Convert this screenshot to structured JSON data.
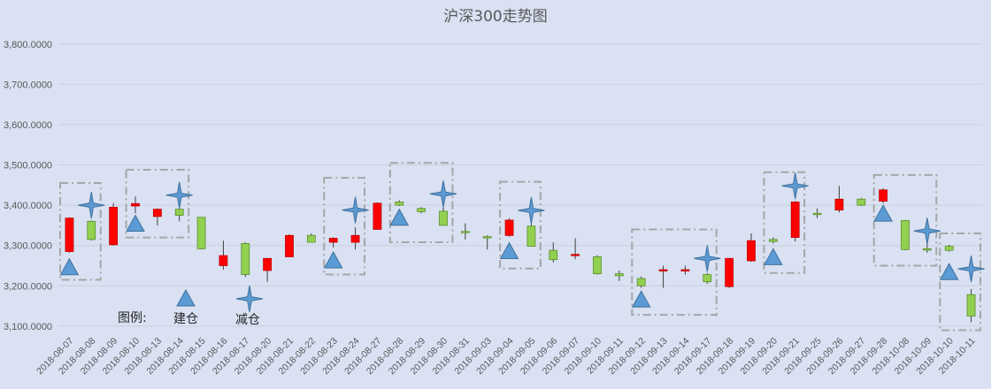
{
  "chart_data": {
    "type": "candlestick",
    "title": "沪深300走势图",
    "y_ticks": [
      "3,100.0000",
      "3,200.0000",
      "3,300.0000",
      "3,400.0000",
      "3,500.0000",
      "3,600.0000",
      "3,700.0000",
      "3,800.0000"
    ],
    "y_tick_values": [
      3100,
      3200,
      3300,
      3400,
      3500,
      3600,
      3700,
      3800
    ],
    "ylim": [
      3080,
      3885
    ],
    "grid": true,
    "colors": {
      "up": "#ff0000",
      "down": "#92d050",
      "marker": "#5b9bd5",
      "marker_edge": "#41719c",
      "box": "#a6a6a6",
      "wick": "#404040"
    },
    "categories": [
      "2018-08-07",
      "2018-08-08",
      "2018-08-09",
      "2018-08-10",
      "2018-08-13",
      "2018-08-14",
      "2018-08-15",
      "2018-08-16",
      "2018-08-17",
      "2018-08-20",
      "2018-08-21",
      "2018-08-22",
      "2018-08-23",
      "2018-08-24",
      "2018-08-27",
      "2018-08-28",
      "2018-08-29",
      "2018-08-30",
      "2018-08-31",
      "2018-09-03",
      "2018-09-04",
      "2018-09-05",
      "2018-09-06",
      "2018-09-07",
      "2018-09-10",
      "2018-09-11",
      "2018-09-12",
      "2018-09-13",
      "2018-09-14",
      "2018-09-17",
      "2018-09-18",
      "2018-09-19",
      "2018-09-20",
      "2018-09-21",
      "2018-09-25",
      "2018-09-26",
      "2018-09-27",
      "2018-09-28",
      "2018-10-08",
      "2018-10-09",
      "2018-10-10",
      "2018-10-11"
    ],
    "ohlc": [
      {
        "o": 3285,
        "h": 3370,
        "l": 3282,
        "c": 3368
      },
      {
        "o": 3360,
        "h": 3362,
        "l": 3312,
        "c": 3315
      },
      {
        "o": 3302,
        "h": 3405,
        "l": 3300,
        "c": 3395
      },
      {
        "o": 3398,
        "h": 3422,
        "l": 3380,
        "c": 3404
      },
      {
        "o": 3372,
        "h": 3392,
        "l": 3350,
        "c": 3390
      },
      {
        "o": 3390,
        "h": 3400,
        "l": 3360,
        "c": 3375
      },
      {
        "o": 3370,
        "h": 3370,
        "l": 3290,
        "c": 3292
      },
      {
        "o": 3250,
        "h": 3312,
        "l": 3240,
        "c": 3275
      },
      {
        "o": 3305,
        "h": 3308,
        "l": 3222,
        "c": 3228
      },
      {
        "o": 3238,
        "h": 3265,
        "l": 3210,
        "c": 3268
      },
      {
        "o": 3272,
        "h": 3328,
        "l": 3272,
        "c": 3325
      },
      {
        "o": 3325,
        "h": 3330,
        "l": 3308,
        "c": 3308
      },
      {
        "o": 3308,
        "h": 3320,
        "l": 3295,
        "c": 3318
      },
      {
        "o": 3308,
        "h": 3345,
        "l": 3290,
        "c": 3325
      },
      {
        "o": 3340,
        "h": 3407,
        "l": 3340,
        "c": 3405
      },
      {
        "o": 3408,
        "h": 3412,
        "l": 3398,
        "c": 3400
      },
      {
        "o": 3392,
        "h": 3395,
        "l": 3380,
        "c": 3384
      },
      {
        "o": 3385,
        "h": 3410,
        "l": 3350,
        "c": 3350
      },
      {
        "o": 3335,
        "h": 3355,
        "l": 3315,
        "c": 3332
      },
      {
        "o": 3322,
        "h": 3325,
        "l": 3290,
        "c": 3320
      },
      {
        "o": 3325,
        "h": 3368,
        "l": 3322,
        "c": 3363
      },
      {
        "o": 3348,
        "h": 3360,
        "l": 3298,
        "c": 3298
      },
      {
        "o": 3288,
        "h": 3308,
        "l": 3258,
        "c": 3265
      },
      {
        "o": 3275,
        "h": 3318,
        "l": 3266,
        "c": 3278
      },
      {
        "o": 3272,
        "h": 3276,
        "l": 3228,
        "c": 3230
      },
      {
        "o": 3230,
        "h": 3238,
        "l": 3212,
        "c": 3225
      },
      {
        "o": 3218,
        "h": 3223,
        "l": 3195,
        "c": 3200
      },
      {
        "o": 3238,
        "h": 3250,
        "l": 3195,
        "c": 3240
      },
      {
        "o": 3240,
        "h": 3250,
        "l": 3228,
        "c": 3240
      },
      {
        "o": 3228,
        "h": 3232,
        "l": 3205,
        "c": 3210
      },
      {
        "o": 3198,
        "h": 3268,
        "l": 3195,
        "c": 3268
      },
      {
        "o": 3262,
        "h": 3330,
        "l": 3260,
        "c": 3312
      },
      {
        "o": 3315,
        "h": 3320,
        "l": 3305,
        "c": 3310
      },
      {
        "o": 3320,
        "h": 3410,
        "l": 3310,
        "c": 3408
      },
      {
        "o": 3380,
        "h": 3392,
        "l": 3368,
        "c": 3378
      },
      {
        "o": 3388,
        "h": 3448,
        "l": 3382,
        "c": 3415
      },
      {
        "o": 3415,
        "h": 3418,
        "l": 3398,
        "c": 3400
      },
      {
        "o": 3410,
        "h": 3442,
        "l": 3405,
        "c": 3438
      },
      {
        "o": 3362,
        "h": 3362,
        "l": 3288,
        "c": 3290
      },
      {
        "o": 3292,
        "h": 3348,
        "l": 3282,
        "c": 3290
      },
      {
        "o": 3298,
        "h": 3302,
        "l": 3285,
        "c": 3288
      },
      {
        "o": 3178,
        "h": 3192,
        "l": 3110,
        "c": 3125
      }
    ],
    "markers": [
      {
        "type": "建仓",
        "cat": 0,
        "y": 3245
      },
      {
        "type": "减仓",
        "cat": 1,
        "y": 3400
      },
      {
        "type": "建仓",
        "cat": 3,
        "y": 3353
      },
      {
        "type": "减仓",
        "cat": 5,
        "y": 3425
      },
      {
        "type": "建仓",
        "cat": 12,
        "y": 3262
      },
      {
        "type": "减仓",
        "cat": 13,
        "y": 3388
      },
      {
        "type": "建仓",
        "cat": 15,
        "y": 3368
      },
      {
        "type": "减仓",
        "cat": 17,
        "y": 3428
      },
      {
        "type": "建仓",
        "cat": 20,
        "y": 3285
      },
      {
        "type": "减仓",
        "cat": 21,
        "y": 3387
      },
      {
        "type": "建仓",
        "cat": 26,
        "y": 3165
      },
      {
        "type": "减仓",
        "cat": 29,
        "y": 3268
      },
      {
        "type": "建仓",
        "cat": 32,
        "y": 3270
      },
      {
        "type": "减仓",
        "cat": 33,
        "y": 3448
      },
      {
        "type": "建仓",
        "cat": 37,
        "y": 3378
      },
      {
        "type": "减仓",
        "cat": 39,
        "y": 3336
      },
      {
        "type": "建仓",
        "cat": 40,
        "y": 3233
      },
      {
        "type": "减仓",
        "cat": 41,
        "y": 3242
      }
    ],
    "boxes": [
      {
        "from": 0,
        "to": 1,
        "ymin": 3215,
        "ymax": 3455
      },
      {
        "from": 3,
        "to": 5,
        "ymin": 3320,
        "ymax": 3488
      },
      {
        "from": 12,
        "to": 13,
        "ymin": 3228,
        "ymax": 3468
      },
      {
        "from": 15,
        "to": 17,
        "ymin": 3308,
        "ymax": 3505
      },
      {
        "from": 20,
        "to": 21,
        "ymin": 3243,
        "ymax": 3458
      },
      {
        "from": 26,
        "to": 29,
        "ymin": 3128,
        "ymax": 3340
      },
      {
        "from": 32,
        "to": 33,
        "ymin": 3232,
        "ymax": 3482
      },
      {
        "from": 37,
        "to": 39,
        "ymin": 3250,
        "ymax": 3475
      },
      {
        "from": 40,
        "to": 41,
        "ymin": 3090,
        "ymax": 3330
      }
    ],
    "legend": {
      "label": "图例:",
      "items": [
        {
          "type": "建仓",
          "text": "建仓"
        },
        {
          "type": "减仓",
          "text": "减仓"
        }
      ]
    }
  }
}
